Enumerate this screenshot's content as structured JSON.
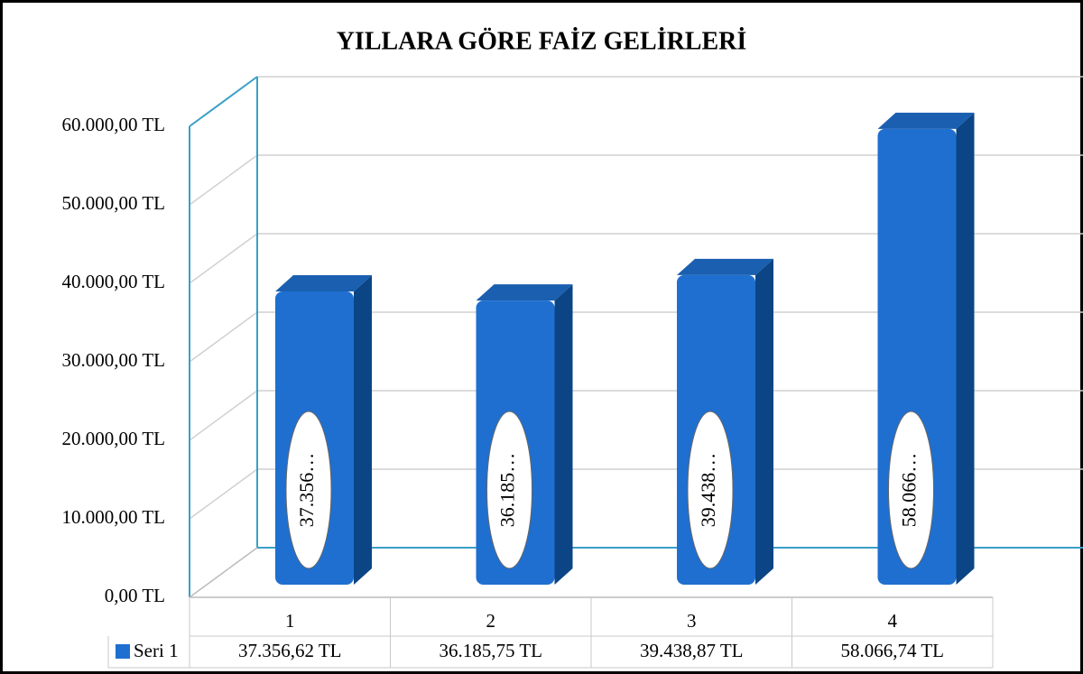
{
  "chart_data": {
    "type": "bar3d",
    "title": "YILLARA GÖRE FAİZ GELİRLERİ",
    "categories": [
      "1",
      "2",
      "3",
      "4"
    ],
    "series": [
      {
        "name": "Seri 1",
        "color": "#1f6fd0",
        "values": [
          37356.62,
          36185.75,
          39438.87,
          58066.74
        ],
        "value_labels": [
          "37.356…",
          "36.185…",
          "39.438…",
          "58.066…"
        ],
        "table_labels": [
          "37.356,62 TL",
          "36.185,75 TL",
          "39.438,87 TL",
          "58.066,74 TL"
        ]
      }
    ],
    "ylim": [
      0,
      60000
    ],
    "yticks": [
      {
        "value": 0,
        "label": "0,00 TL"
      },
      {
        "value": 10000,
        "label": "10.000,00 TL"
      },
      {
        "value": 20000,
        "label": "20.000,00 TL"
      },
      {
        "value": 30000,
        "label": "30.000,00 TL"
      },
      {
        "value": 40000,
        "label": "40.000,00 TL"
      },
      {
        "value": 50000,
        "label": "50.000,00 TL"
      },
      {
        "value": 60000,
        "label": "60.000,00 TL"
      }
    ],
    "grid": true
  }
}
